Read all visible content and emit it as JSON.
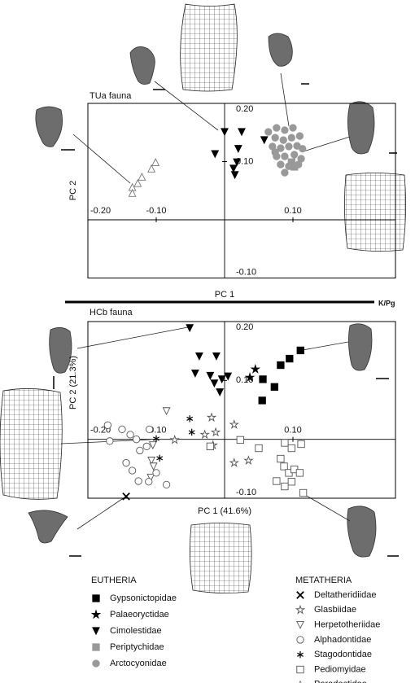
{
  "chart_data": [
    {
      "type": "scatter",
      "title": "TUa fauna",
      "xlabel": "PC 1",
      "ylabel": "PC 2",
      "xlim": [
        -0.2,
        0.25
      ],
      "ylim": [
        -0.1,
        0.2
      ],
      "xticks": [
        {
          "value": -0.2,
          "label": "-0.20"
        },
        {
          "value": -0.1,
          "label": "-0.10"
        },
        {
          "value": 0.1,
          "label": "0.10"
        }
      ],
      "yticks": [
        {
          "value": 0.2,
          "label": "0.20"
        },
        {
          "value": 0.1,
          "label": "0.10"
        },
        {
          "value": -0.1,
          "label": "-0.10"
        }
      ],
      "series": [
        {
          "name": "Cimolestidae",
          "marker": "triangle-down",
          "filled": true,
          "color": "#000000",
          "x": [
            0,
            0.025,
            0.058,
            0.02,
            -0.014,
            0.018,
            0.013,
            0.015
          ],
          "y": [
            0.151,
            0.151,
            0.137,
            0.122,
            0.113,
            0.099,
            0.088,
            0.077
          ]
        },
        {
          "name": "Periptychidae",
          "marker": "square",
          "filled": true,
          "color": "#999999",
          "x": [
            0.098,
            0.102
          ],
          "y": [
            0.099,
            0.091
          ]
        },
        {
          "name": "Arctocyonidae",
          "marker": "circle",
          "filled": true,
          "color": "#999999",
          "x": [
            0.064,
            0.076,
            0.088,
            0.1,
            0.074,
            0.086,
            0.098,
            0.11,
            0.07,
            0.082,
            0.094,
            0.106,
            0.114,
            0.076,
            0.088,
            0.102,
            0.112,
            0.082,
            0.094,
            0.108,
            0.088,
            0.074
          ],
          "y": [
            0.151,
            0.158,
            0.154,
            0.158,
            0.141,
            0.137,
            0.141,
            0.144,
            0.126,
            0.123,
            0.126,
            0.127,
            0.122,
            0.109,
            0.109,
            0.112,
            0.105,
            0.095,
            0.092,
            0.095,
            0.081,
            0.116
          ]
        },
        {
          "name": "Peradectidae",
          "marker": "triangle-up",
          "filled": false,
          "color": "#777777",
          "x": [
            -0.101,
            -0.107,
            -0.121,
            -0.127,
            -0.135,
            -0.135
          ],
          "y": [
            0.099,
            0.088,
            0.074,
            0.063,
            0.056,
            0.046
          ]
        }
      ]
    },
    {
      "type": "scatter",
      "title": "HCb fauna",
      "xlabel": "PC 1 (41.6%)",
      "ylabel": "PC 2 (21.3%)",
      "xlim": [
        -0.2,
        0.25
      ],
      "ylim": [
        -0.1,
        0.2
      ],
      "xticks": [
        {
          "value": -0.2,
          "label": "-0.20"
        },
        {
          "value": -0.1,
          "label": "-0.10"
        },
        {
          "value": 0.1,
          "label": "0.10"
        }
      ],
      "yticks": [
        {
          "value": 0.2,
          "label": "0.20"
        },
        {
          "value": 0.1,
          "label": "0.10"
        },
        {
          "value": -0.1,
          "label": "-0.10"
        }
      ],
      "series": [
        {
          "name": "Gypsonictopidae",
          "marker": "square",
          "filled": true,
          "color": "#000000",
          "x": [
            0.111,
            0.095,
            0.082,
            0.056,
            0.073,
            0.055
          ],
          "y": [
            0.151,
            0.137,
            0.126,
            0.102,
            0.089,
            0.066
          ]
        },
        {
          "name": "Palaeoryctidae",
          "marker": "star",
          "filled": true,
          "color": "#000000",
          "x": [
            0.045,
            0.037
          ],
          "y": [
            0.119,
            0.105
          ]
        },
        {
          "name": "Cimolestidae",
          "marker": "triangle-down",
          "filled": true,
          "color": "#000000",
          "x": [
            -0.051,
            -0.037,
            -0.012,
            -0.043,
            -0.021,
            -0.004,
            -0.015,
            -0.007,
            0.005
          ],
          "y": [
            0.189,
            0.141,
            0.141,
            0.112,
            0.108,
            0.102,
            0.095,
            0.08,
            0.107
          ]
        },
        {
          "name": "Deltatheridiidae",
          "marker": "x",
          "filled": false,
          "color": "#000000",
          "x": [
            -0.144
          ],
          "y": [
            -0.097
          ]
        },
        {
          "name": "Glasbiidae",
          "marker": "star",
          "filled": false,
          "color": "#555555",
          "x": [
            -0.019,
            0.014,
            -0.013,
            -0.029,
            -0.017,
            0.014,
            0.035,
            -0.073
          ],
          "y": [
            0.037,
            0.025,
            0.012,
            0.008,
            -0.01,
            -0.04,
            -0.036,
            -0.001
          ]
        },
        {
          "name": "Herpetotheriidae",
          "marker": "triangle-down",
          "filled": false,
          "color": "#555555",
          "x": [
            -0.085,
            -0.105,
            -0.107,
            -0.104,
            -0.108
          ],
          "y": [
            0.048,
            -0.01,
            -0.036,
            -0.046,
            -0.065
          ]
        },
        {
          "name": "Alphadontidae",
          "marker": "circle",
          "filled": false,
          "color": "#555555",
          "x": [
            -0.171,
            -0.15,
            -0.138,
            -0.168,
            -0.129,
            -0.11,
            -0.114,
            -0.124,
            -0.144,
            -0.135,
            -0.126,
            -0.111,
            -0.085,
            -0.1
          ],
          "y": [
            0.024,
            0.017,
            0.008,
            -0.003,
            0,
            0.017,
            -0.012,
            -0.019,
            -0.04,
            -0.053,
            -0.071,
            -0.072,
            -0.077,
            -0.057
          ]
        },
        {
          "name": "Stagodontidae",
          "marker": "asterisk",
          "filled": false,
          "color": "#000000",
          "x": [
            -0.051,
            -0.048,
            -0.1,
            -0.095
          ],
          "y": [
            0.035,
            0.012,
            0.001,
            -0.032
          ]
        },
        {
          "name": "Pediomyidae",
          "marker": "square",
          "filled": false,
          "color": "#555555",
          "x": [
            -0.021,
            0.023,
            0.05,
            0.088,
            0.098,
            0.112,
            0.082,
            0.087,
            0.094,
            0.102,
            0.11,
            0.098,
            0.088,
            0.115,
            0.076
          ],
          "y": [
            -0.012,
            -0.001,
            -0.015,
            -0.006,
            -0.015,
            -0.008,
            -0.033,
            -0.046,
            -0.057,
            -0.051,
            -0.057,
            -0.072,
            -0.08,
            -0.091,
            -0.071
          ]
        }
      ]
    }
  ],
  "boundary_label": "K/Pg",
  "legend": [
    {
      "title": "EUTHERIA",
      "entries": [
        {
          "name": "Gypsonictopidae",
          "marker": "square",
          "filled": true,
          "color": "#000000"
        },
        {
          "name": "Palaeoryctidae",
          "marker": "star",
          "filled": true,
          "color": "#000000"
        },
        {
          "name": "Cimolestidae",
          "marker": "triangle-down",
          "filled": true,
          "color": "#000000"
        },
        {
          "name": "Periptychidae",
          "marker": "square",
          "filled": true,
          "color": "#999999"
        },
        {
          "name": "Arctocyonidae",
          "marker": "circle",
          "filled": true,
          "color": "#999999"
        }
      ]
    },
    {
      "title": "METATHERIA",
      "entries": [
        {
          "name": "Deltatheridiidae",
          "marker": "x",
          "filled": false,
          "color": "#000000"
        },
        {
          "name": "Glasbiidae",
          "marker": "star",
          "filled": false,
          "color": "#555555"
        },
        {
          "name": "Herpetotheriidae",
          "marker": "triangle-down",
          "filled": false,
          "color": "#555555"
        },
        {
          "name": "Alphadontidae",
          "marker": "circle",
          "filled": false,
          "color": "#555555"
        },
        {
          "name": "Stagodontidae",
          "marker": "asterisk",
          "filled": false,
          "color": "#000000"
        },
        {
          "name": "Pediomyidae",
          "marker": "square",
          "filled": false,
          "color": "#555555"
        },
        {
          "name": "Peradectidae",
          "marker": "triangle-up",
          "filled": false,
          "color": "#777777"
        }
      ]
    }
  ]
}
